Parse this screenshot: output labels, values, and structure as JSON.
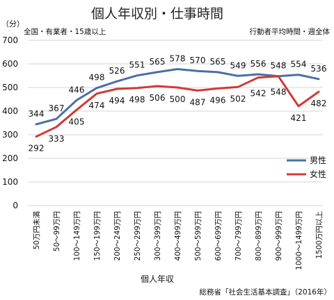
{
  "title": "個人年収別・仕事時間",
  "note_left": "全国・有業者・15歳以上",
  "note_right": "行動者平均時間・週全体",
  "unit": "（分）",
  "source": "総務省「社会生活基本調査」（2016年）",
  "colors": {
    "male": "#4a6fa5",
    "female": "#d03a32",
    "grid": "#d4d4d4"
  },
  "chart_data": {
    "type": "line",
    "title": "個人年収別・仕事時間",
    "xlabel": "個人年収",
    "ylabel": "（分）",
    "ylim": [
      0,
      700
    ],
    "yticks": [
      0,
      100,
      200,
      300,
      400,
      500,
      600,
      700
    ],
    "grid": true,
    "legend": "right",
    "categories": [
      "50万円未満",
      "50～99万円",
      "100～149万円",
      "150～199万円",
      "200～249万円",
      "250～299万円",
      "300～399万円",
      "400～499万円",
      "500～599万円",
      "600～699万円",
      "700～799万円",
      "800～899万円",
      "900～999万円",
      "1000～1499万円",
      "1500万円以上"
    ],
    "series": [
      {
        "name": "男性",
        "color": "#4a6fa5",
        "values": [
          344,
          367,
          446,
          498,
          526,
          551,
          565,
          578,
          570,
          565,
          549,
          556,
          548,
          554,
          536
        ]
      },
      {
        "name": "女性",
        "color": "#d03a32",
        "values": [
          292,
          333,
          405,
          474,
          494,
          498,
          506,
          500,
          487,
          496,
          502,
          542,
          548,
          421,
          482
        ]
      }
    ]
  }
}
